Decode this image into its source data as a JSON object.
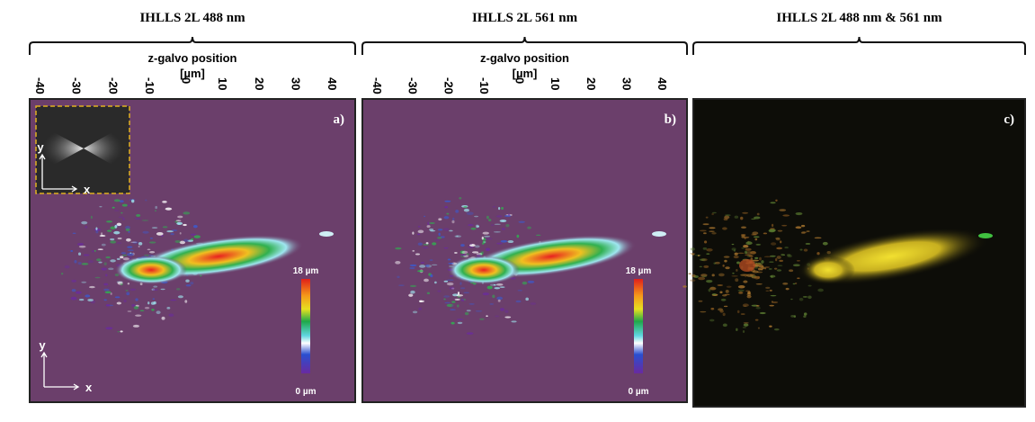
{
  "panels": [
    {
      "title": "IHLLS 2L 488 nm",
      "axis_title": "z-galvo position",
      "axis_unit": "[µm]",
      "ticks": [
        "-40",
        "-30",
        "-20",
        "-10",
        "0",
        "10",
        "20",
        "30",
        "40"
      ],
      "label": "a)",
      "colorbar": {
        "max": "18 µm",
        "min": "0 µm"
      },
      "axes": {
        "y": "y",
        "x": "x"
      },
      "inset_axes": {
        "y": "y",
        "x": "x"
      }
    },
    {
      "title": "IHLLS 2L 561 nm",
      "axis_title": "z-galvo position",
      "axis_unit": "[µm]",
      "ticks": [
        "-40",
        "-30",
        "-20",
        "-10",
        "0",
        "10",
        "20",
        "30",
        "40"
      ],
      "label": "b)",
      "colorbar": {
        "max": "18 µm",
        "min": "0 µm"
      }
    },
    {
      "title": "IHLLS 2L 488 nm & 561 nm",
      "label": "c)"
    }
  ]
}
